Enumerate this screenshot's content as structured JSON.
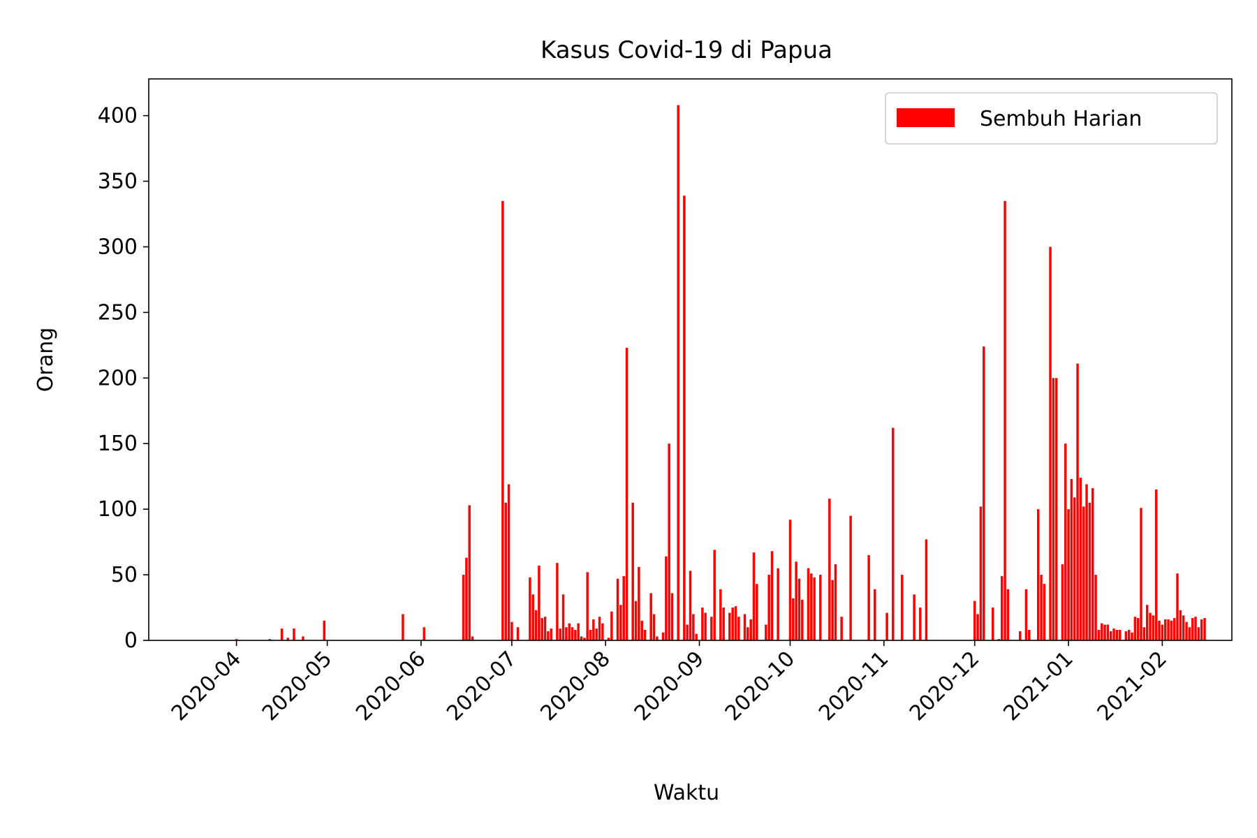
{
  "chart_data": {
    "type": "bar",
    "title": "Kasus Covid-19 di Papua",
    "xlabel": "Waktu",
    "ylabel": "Orang",
    "ylim": [
      0,
      428
    ],
    "xlim": [
      "2020-03-03",
      "2021-02-24"
    ],
    "yticks": [
      0,
      50,
      100,
      150,
      200,
      250,
      300,
      350,
      400
    ],
    "xticks": [
      "2020-04",
      "2020-05",
      "2020-06",
      "2020-07",
      "2020-08",
      "2020-09",
      "2020-10",
      "2020-11",
      "2020-12",
      "2021-01",
      "2021-02"
    ],
    "grid": false,
    "legend_position": "top-right",
    "series": [
      {
        "name": "Sembuh Harian",
        "color": "#ff0000",
        "points": [
          [
            "2020-04-01",
            1
          ],
          [
            "2020-04-12",
            1
          ],
          [
            "2020-04-16",
            9
          ],
          [
            "2020-04-18",
            2
          ],
          [
            "2020-04-20",
            9
          ],
          [
            "2020-04-23",
            3
          ],
          [
            "2020-04-30",
            15
          ],
          [
            "2020-05-26",
            20
          ],
          [
            "2020-06-02",
            10
          ],
          [
            "2020-06-15",
            50
          ],
          [
            "2020-06-16",
            63
          ],
          [
            "2020-06-17",
            103
          ],
          [
            "2020-06-18",
            3
          ],
          [
            "2020-06-28",
            335
          ],
          [
            "2020-06-29",
            105
          ],
          [
            "2020-06-30",
            119
          ],
          [
            "2020-07-01",
            14
          ],
          [
            "2020-07-03",
            10
          ],
          [
            "2020-07-07",
            48
          ],
          [
            "2020-07-08",
            35
          ],
          [
            "2020-07-09",
            23
          ],
          [
            "2020-07-10",
            57
          ],
          [
            "2020-07-11",
            17
          ],
          [
            "2020-07-12",
            18
          ],
          [
            "2020-07-13",
            7
          ],
          [
            "2020-07-14",
            9
          ],
          [
            "2020-07-16",
            59
          ],
          [
            "2020-07-17",
            9
          ],
          [
            "2020-07-18",
            35
          ],
          [
            "2020-07-19",
            10
          ],
          [
            "2020-07-20",
            13
          ],
          [
            "2020-07-21",
            10
          ],
          [
            "2020-07-22",
            8
          ],
          [
            "2020-07-23",
            13
          ],
          [
            "2020-07-24",
            3
          ],
          [
            "2020-07-25",
            2
          ],
          [
            "2020-07-26",
            52
          ],
          [
            "2020-07-27",
            8
          ],
          [
            "2020-07-28",
            16
          ],
          [
            "2020-07-29",
            9
          ],
          [
            "2020-07-30",
            18
          ],
          [
            "2020-07-31",
            13
          ],
          [
            "2020-08-02",
            2
          ],
          [
            "2020-08-03",
            22
          ],
          [
            "2020-08-05",
            47
          ],
          [
            "2020-08-06",
            27
          ],
          [
            "2020-08-07",
            49
          ],
          [
            "2020-08-08",
            223
          ],
          [
            "2020-08-10",
            105
          ],
          [
            "2020-08-11",
            30
          ],
          [
            "2020-08-12",
            56
          ],
          [
            "2020-08-13",
            15
          ],
          [
            "2020-08-14",
            8
          ],
          [
            "2020-08-16",
            36
          ],
          [
            "2020-08-17",
            20
          ],
          [
            "2020-08-18",
            3
          ],
          [
            "2020-08-20",
            6
          ],
          [
            "2020-08-21",
            64
          ],
          [
            "2020-08-22",
            150
          ],
          [
            "2020-08-23",
            36
          ],
          [
            "2020-08-25",
            408
          ],
          [
            "2020-08-27",
            339
          ],
          [
            "2020-08-28",
            12
          ],
          [
            "2020-08-29",
            53
          ],
          [
            "2020-08-30",
            20
          ],
          [
            "2020-08-31",
            5
          ],
          [
            "2020-09-02",
            25
          ],
          [
            "2020-09-03",
            21
          ],
          [
            "2020-09-05",
            18
          ],
          [
            "2020-09-06",
            69
          ],
          [
            "2020-09-08",
            39
          ],
          [
            "2020-09-09",
            25
          ],
          [
            "2020-09-11",
            21
          ],
          [
            "2020-09-12",
            25
          ],
          [
            "2020-09-13",
            26
          ],
          [
            "2020-09-14",
            18
          ],
          [
            "2020-09-16",
            20
          ],
          [
            "2020-09-17",
            10
          ],
          [
            "2020-09-18",
            16
          ],
          [
            "2020-09-19",
            67
          ],
          [
            "2020-09-20",
            43
          ],
          [
            "2020-09-23",
            12
          ],
          [
            "2020-09-24",
            50
          ],
          [
            "2020-09-25",
            68
          ],
          [
            "2020-09-27",
            55
          ],
          [
            "2020-10-01",
            92
          ],
          [
            "2020-10-02",
            32
          ],
          [
            "2020-10-03",
            60
          ],
          [
            "2020-10-04",
            47
          ],
          [
            "2020-10-05",
            31
          ],
          [
            "2020-10-07",
            55
          ],
          [
            "2020-10-08",
            51
          ],
          [
            "2020-10-09",
            48
          ],
          [
            "2020-10-11",
            50
          ],
          [
            "2020-10-14",
            108
          ],
          [
            "2020-10-15",
            46
          ],
          [
            "2020-10-16",
            58
          ],
          [
            "2020-10-18",
            18
          ],
          [
            "2020-10-21",
            95
          ],
          [
            "2020-10-27",
            65
          ],
          [
            "2020-10-29",
            39
          ],
          [
            "2020-11-02",
            21
          ],
          [
            "2020-11-04",
            162
          ],
          [
            "2020-11-07",
            50
          ],
          [
            "2020-11-11",
            35
          ],
          [
            "2020-11-13",
            25
          ],
          [
            "2020-11-15",
            77
          ],
          [
            "2020-12-01",
            30
          ],
          [
            "2020-12-02",
            20
          ],
          [
            "2020-12-03",
            102
          ],
          [
            "2020-12-04",
            224
          ],
          [
            "2020-12-07",
            25
          ],
          [
            "2020-12-09",
            1
          ],
          [
            "2020-12-10",
            49
          ],
          [
            "2020-12-11",
            335
          ],
          [
            "2020-12-12",
            39
          ],
          [
            "2020-12-16",
            7
          ],
          [
            "2020-12-18",
            39
          ],
          [
            "2020-12-19",
            8
          ],
          [
            "2020-12-22",
            100
          ],
          [
            "2020-12-23",
            50
          ],
          [
            "2020-12-24",
            43
          ],
          [
            "2020-12-26",
            300
          ],
          [
            "2020-12-27",
            200
          ],
          [
            "2020-12-28",
            200
          ],
          [
            "2020-12-30",
            58
          ],
          [
            "2020-12-31",
            150
          ],
          [
            "2021-01-01",
            100
          ],
          [
            "2021-01-02",
            123
          ],
          [
            "2021-01-03",
            109
          ],
          [
            "2021-01-04",
            211
          ],
          [
            "2021-01-05",
            124
          ],
          [
            "2021-01-06",
            102
          ],
          [
            "2021-01-07",
            119
          ],
          [
            "2021-01-08",
            105
          ],
          [
            "2021-01-09",
            116
          ],
          [
            "2021-01-10",
            50
          ],
          [
            "2021-01-11",
            8
          ],
          [
            "2021-01-12",
            13
          ],
          [
            "2021-01-13",
            12
          ],
          [
            "2021-01-14",
            12
          ],
          [
            "2021-01-15",
            7
          ],
          [
            "2021-01-16",
            9
          ],
          [
            "2021-01-17",
            8
          ],
          [
            "2021-01-18",
            8
          ],
          [
            "2021-01-20",
            7
          ],
          [
            "2021-01-21",
            8
          ],
          [
            "2021-01-22",
            6
          ],
          [
            "2021-01-23",
            18
          ],
          [
            "2021-01-24",
            17
          ],
          [
            "2021-01-25",
            101
          ],
          [
            "2021-01-26",
            10
          ],
          [
            "2021-01-27",
            27
          ],
          [
            "2021-01-28",
            21
          ],
          [
            "2021-01-29",
            19
          ],
          [
            "2021-01-30",
            115
          ],
          [
            "2021-01-31",
            15
          ],
          [
            "2021-02-01",
            12
          ],
          [
            "2021-02-02",
            16
          ],
          [
            "2021-02-03",
            16
          ],
          [
            "2021-02-04",
            15
          ],
          [
            "2021-02-05",
            17
          ],
          [
            "2021-02-06",
            51
          ],
          [
            "2021-02-07",
            23
          ],
          [
            "2021-02-08",
            19
          ],
          [
            "2021-02-09",
            14
          ],
          [
            "2021-02-10",
            10
          ],
          [
            "2021-02-11",
            17
          ],
          [
            "2021-02-12",
            18
          ],
          [
            "2021-02-13",
            10
          ],
          [
            "2021-02-14",
            16
          ],
          [
            "2021-02-15",
            17
          ]
        ]
      }
    ]
  }
}
